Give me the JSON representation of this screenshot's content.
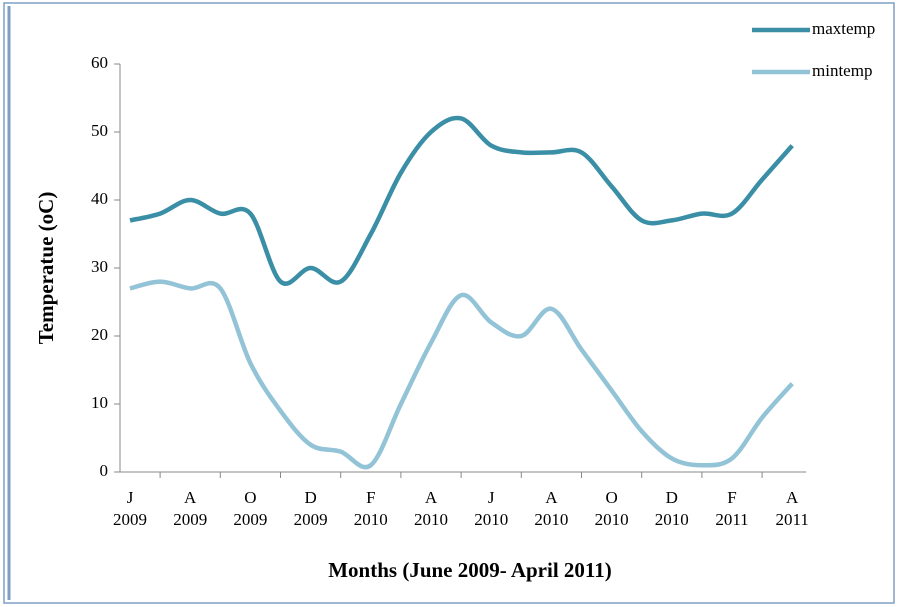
{
  "chart_data": {
    "type": "line",
    "x_label": "Months (June 2009- April 2011)",
    "y_label": "Temperatue (oC)",
    "categories": [
      "J 2009",
      null,
      "A 2009",
      null,
      "O 2009",
      null,
      "D 2009",
      null,
      "F 2010",
      null,
      "A 2010",
      null,
      "J 2010",
      null,
      "A 2010",
      null,
      "O 2010",
      null,
      "D 2010",
      null,
      "F 2011",
      null,
      "A 2011"
    ],
    "series": [
      {
        "name": "maxtemp",
        "color": "#3a8ea6",
        "values": [
          37,
          38,
          40,
          38,
          38,
          28,
          30,
          28,
          35,
          44,
          50,
          52,
          48,
          47,
          47,
          47,
          42,
          37,
          37,
          38,
          38,
          43,
          48
        ]
      },
      {
        "name": "mintemp",
        "color": "#93c3d6",
        "values": [
          27,
          28,
          27,
          27,
          16,
          9,
          4,
          3,
          1,
          10,
          19,
          26,
          22,
          20,
          24,
          18,
          12,
          6,
          2,
          1,
          2,
          8,
          13
        ]
      }
    ],
    "ylim": [
      0,
      60
    ],
    "yticks": [
      0,
      10,
      20,
      30,
      40,
      50,
      60
    ],
    "grid": false,
    "smooth": true,
    "legend": "top-right"
  }
}
